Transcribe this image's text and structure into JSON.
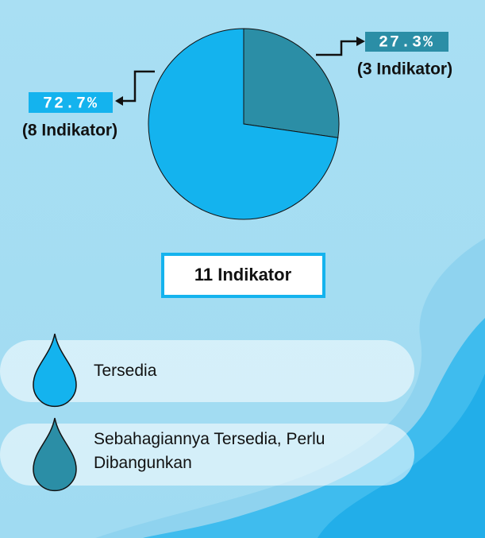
{
  "chart_data": {
    "type": "pie",
    "categories": [
      "Tersedia",
      "Sebahagiannya Tersedia, Perlu Dibangunkan"
    ],
    "values": [
      72.7,
      27.3
    ],
    "value_labels": [
      "72.7%",
      "27.3%"
    ],
    "annotations": [
      "(8 Indikator)",
      "(3 Indikator)"
    ],
    "colors": [
      "#14b3ee",
      "#2b8ea6"
    ],
    "total_label": "11 Indikator"
  }
}
